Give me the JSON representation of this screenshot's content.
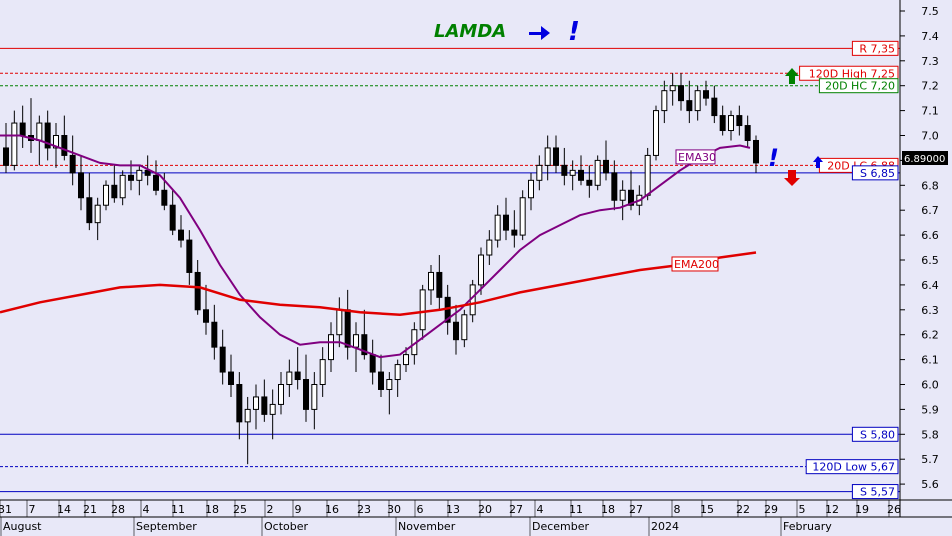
{
  "chart_data": {
    "type": "candlestick",
    "title": "LAMDA",
    "ylim": [
      5.5,
      7.55
    ],
    "yticks": [
      "5.6",
      "5.7",
      "5.8",
      "5.9",
      "6.0",
      "6.1",
      "6.2",
      "6.3",
      "6.4",
      "6.5",
      "6.6",
      "6.7",
      "6.8",
      "6.9",
      "7.0",
      "7.1",
      "7.2",
      "7.3",
      "7.4",
      "7.5"
    ],
    "xticks": [
      "31",
      "7",
      "14",
      "21",
      "28",
      "4",
      "11",
      "18",
      "25",
      "2",
      "9",
      "16",
      "23",
      "30",
      "6",
      "13",
      "20",
      "27",
      "4",
      "11",
      "18",
      "27",
      "8",
      "15",
      "22",
      "29",
      "5",
      "12",
      "19",
      "26"
    ],
    "months": [
      "August",
      "September",
      "October",
      "November",
      "December",
      "2024",
      "February"
    ],
    "last_price": "6.89000",
    "levels": [
      {
        "label": "R 7,35",
        "value": 7.35,
        "color": "#e00000",
        "style": "solid"
      },
      {
        "label": "120D High 7,25",
        "value": 7.25,
        "color": "#e00000",
        "style": "dashed"
      },
      {
        "label": "20D HC 7,20",
        "value": 7.2,
        "color": "#008000",
        "style": "dashed"
      },
      {
        "label": "20D LC 6,88",
        "value": 6.88,
        "color": "#e00000",
        "style": "dashed"
      },
      {
        "label": "S 6,85",
        "value": 6.85,
        "color": "#0000c0",
        "style": "solid"
      },
      {
        "label": "S 5,80",
        "value": 5.8,
        "color": "#0000c0",
        "style": "solid"
      },
      {
        "label": "120D Low 5,67",
        "value": 5.67,
        "color": "#0000c0",
        "style": "dashed"
      },
      {
        "label": "S 5,57",
        "value": 5.57,
        "color": "#0000c0",
        "style": "solid"
      }
    ],
    "ema_labels": {
      "ema30": "EMA30",
      "ema200": "EMA200"
    },
    "series": [
      {
        "name": "EMA30",
        "color": "#800080",
        "x": [
          0,
          20,
          40,
          60,
          80,
          100,
          120,
          140,
          160,
          180,
          200,
          220,
          240,
          260,
          280,
          300,
          320,
          340,
          360,
          380,
          400,
          420,
          440,
          460,
          480,
          500,
          520,
          540,
          560,
          580,
          600,
          620,
          640,
          660,
          680,
          700,
          720,
          740,
          750
        ],
        "values": [
          7.0,
          7.0,
          6.98,
          6.95,
          6.92,
          6.89,
          6.88,
          6.88,
          6.84,
          6.75,
          6.62,
          6.48,
          6.36,
          6.27,
          6.2,
          6.16,
          6.17,
          6.17,
          6.14,
          6.11,
          6.12,
          6.18,
          6.24,
          6.3,
          6.38,
          6.46,
          6.54,
          6.6,
          6.64,
          6.68,
          6.7,
          6.71,
          6.74,
          6.8,
          6.86,
          6.91,
          6.95,
          6.96,
          6.95
        ]
      },
      {
        "name": "EMA200",
        "color": "#e00000",
        "x": [
          0,
          40,
          80,
          120,
          160,
          200,
          240,
          280,
          320,
          360,
          400,
          440,
          480,
          520,
          560,
          600,
          640,
          680,
          720,
          756
        ],
        "values": [
          6.29,
          6.33,
          6.36,
          6.39,
          6.4,
          6.39,
          6.34,
          6.32,
          6.31,
          6.29,
          6.28,
          6.3,
          6.33,
          6.37,
          6.4,
          6.43,
          6.46,
          6.48,
          6.51,
          6.53
        ]
      }
    ],
    "ohlc": [
      [
        6.95,
        7.05,
        6.85,
        6.88
      ],
      [
        6.88,
        7.1,
        6.86,
        7.05
      ],
      [
        7.05,
        7.12,
        6.95,
        7.0
      ],
      [
        7.0,
        7.15,
        6.93,
        6.98
      ],
      [
        6.98,
        7.08,
        6.88,
        7.05
      ],
      [
        7.05,
        7.1,
        6.9,
        6.95
      ],
      [
        6.95,
        7.05,
        6.87,
        7.0
      ],
      [
        7.0,
        7.08,
        6.9,
        6.92
      ],
      [
        6.92,
        7.0,
        6.8,
        6.85
      ],
      [
        6.85,
        6.92,
        6.7,
        6.75
      ],
      [
        6.75,
        6.85,
        6.62,
        6.65
      ],
      [
        6.65,
        6.75,
        6.58,
        6.72
      ],
      [
        6.72,
        6.82,
        6.7,
        6.8
      ],
      [
        6.8,
        6.88,
        6.73,
        6.75
      ],
      [
        6.75,
        6.86,
        6.72,
        6.84
      ],
      [
        6.84,
        6.9,
        6.78,
        6.82
      ],
      [
        6.82,
        6.88,
        6.76,
        6.86
      ],
      [
        6.86,
        6.92,
        6.8,
        6.84
      ],
      [
        6.84,
        6.9,
        6.76,
        6.78
      ],
      [
        6.78,
        6.85,
        6.7,
        6.72
      ],
      [
        6.72,
        6.78,
        6.6,
        6.62
      ],
      [
        6.62,
        6.68,
        6.55,
        6.58
      ],
      [
        6.58,
        6.62,
        6.4,
        6.45
      ],
      [
        6.45,
        6.5,
        6.28,
        6.3
      ],
      [
        6.3,
        6.4,
        6.2,
        6.25
      ],
      [
        6.25,
        6.32,
        6.1,
        6.15
      ],
      [
        6.15,
        6.22,
        6.0,
        6.05
      ],
      [
        6.05,
        6.12,
        5.95,
        6.0
      ],
      [
        6.0,
        6.05,
        5.78,
        5.85
      ],
      [
        5.85,
        5.95,
        5.68,
        5.9
      ],
      [
        5.9,
        6.0,
        5.82,
        5.95
      ],
      [
        5.95,
        6.02,
        5.85,
        5.88
      ],
      [
        5.88,
        5.98,
        5.78,
        5.92
      ],
      [
        5.92,
        6.05,
        5.88,
        6.0
      ],
      [
        6.0,
        6.1,
        5.95,
        6.05
      ],
      [
        6.05,
        6.15,
        5.98,
        6.02
      ],
      [
        6.02,
        6.12,
        5.85,
        5.9
      ],
      [
        5.9,
        6.05,
        5.82,
        6.0
      ],
      [
        6.0,
        6.15,
        5.95,
        6.1
      ],
      [
        6.1,
        6.25,
        6.05,
        6.2
      ],
      [
        6.2,
        6.35,
        6.15,
        6.3
      ],
      [
        6.3,
        6.38,
        6.1,
        6.15
      ],
      [
        6.15,
        6.25,
        6.05,
        6.2
      ],
      [
        6.2,
        6.3,
        6.1,
        6.12
      ],
      [
        6.12,
        6.18,
        6.0,
        6.05
      ],
      [
        6.05,
        6.12,
        5.95,
        5.98
      ],
      [
        5.98,
        6.05,
        5.88,
        6.02
      ],
      [
        6.02,
        6.1,
        5.95,
        6.08
      ],
      [
        6.08,
        6.15,
        6.05,
        6.12
      ],
      [
        6.12,
        6.25,
        6.08,
        6.22
      ],
      [
        6.22,
        6.4,
        6.18,
        6.38
      ],
      [
        6.38,
        6.48,
        6.32,
        6.45
      ],
      [
        6.45,
        6.52,
        6.3,
        6.35
      ],
      [
        6.35,
        6.4,
        6.2,
        6.25
      ],
      [
        6.25,
        6.32,
        6.12,
        6.18
      ],
      [
        6.18,
        6.3,
        6.15,
        6.28
      ],
      [
        6.28,
        6.42,
        6.25,
        6.4
      ],
      [
        6.4,
        6.55,
        6.36,
        6.52
      ],
      [
        6.52,
        6.62,
        6.48,
        6.58
      ],
      [
        6.58,
        6.72,
        6.55,
        6.68
      ],
      [
        6.68,
        6.75,
        6.58,
        6.62
      ],
      [
        6.62,
        6.7,
        6.55,
        6.6
      ],
      [
        6.6,
        6.78,
        6.58,
        6.75
      ],
      [
        6.75,
        6.85,
        6.7,
        6.82
      ],
      [
        6.82,
        6.92,
        6.78,
        6.88
      ],
      [
        6.88,
        7.0,
        6.82,
        6.95
      ],
      [
        6.95,
        7.0,
        6.85,
        6.88
      ],
      [
        6.88,
        6.95,
        6.8,
        6.84
      ],
      [
        6.84,
        6.9,
        6.78,
        6.86
      ],
      [
        6.86,
        6.92,
        6.8,
        6.82
      ],
      [
        6.82,
        6.88,
        6.75,
        6.8
      ],
      [
        6.8,
        6.92,
        6.78,
        6.9
      ],
      [
        6.9,
        6.98,
        6.82,
        6.85
      ],
      [
        6.85,
        6.9,
        6.7,
        6.74
      ],
      [
        6.74,
        6.82,
        6.66,
        6.78
      ],
      [
        6.78,
        6.86,
        6.7,
        6.72
      ],
      [
        6.72,
        6.8,
        6.68,
        6.76
      ],
      [
        6.76,
        6.95,
        6.74,
        6.92
      ],
      [
        6.92,
        7.12,
        6.9,
        7.1
      ],
      [
        7.1,
        7.22,
        7.05,
        7.18
      ],
      [
        7.18,
        7.25,
        7.12,
        7.2
      ],
      [
        7.2,
        7.25,
        7.1,
        7.14
      ],
      [
        7.14,
        7.22,
        7.05,
        7.1
      ],
      [
        7.1,
        7.2,
        7.06,
        7.18
      ],
      [
        7.18,
        7.22,
        7.12,
        7.15
      ],
      [
        7.15,
        7.2,
        7.05,
        7.08
      ],
      [
        7.08,
        7.12,
        7.0,
        7.02
      ],
      [
        7.02,
        7.1,
        6.98,
        7.08
      ],
      [
        7.08,
        7.12,
        7.0,
        7.04
      ],
      [
        7.04,
        7.08,
        6.95,
        6.98
      ],
      [
        6.98,
        7.0,
        6.85,
        6.89
      ]
    ]
  }
}
